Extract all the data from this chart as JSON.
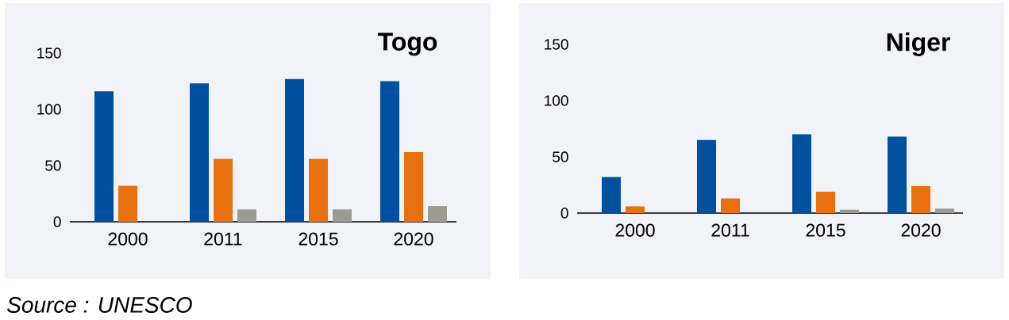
{
  "chart_data": [
    {
      "type": "bar",
      "title": "Togo",
      "categories": [
        "2000",
        "2011",
        "2015",
        "2020"
      ],
      "series": [
        {
          "color": "#0050a0",
          "values": [
            116,
            123,
            127,
            125
          ]
        },
        {
          "color": "#e8700f",
          "values": [
            32,
            56,
            56,
            62
          ]
        },
        {
          "color": "#9c9b91",
          "values": [
            null,
            11,
            11,
            14
          ]
        }
      ],
      "ylim": [
        0,
        150
      ],
      "yticks": [
        0,
        50,
        100,
        150
      ],
      "annotations": [
        "Source : UNESCO"
      ]
    },
    {
      "type": "bar",
      "title": "Niger",
      "categories": [
        "2000",
        "2011",
        "2015",
        "2020"
      ],
      "series": [
        {
          "color": "#0050a0",
          "values": [
            32,
            65,
            70,
            68
          ]
        },
        {
          "color": "#e8700f",
          "values": [
            6,
            13,
            19,
            24
          ]
        },
        {
          "color": "#9c9b91",
          "values": [
            null,
            null,
            3,
            4
          ]
        }
      ],
      "ylim": [
        0,
        150
      ],
      "yticks": [
        0,
        50,
        100,
        150
      ]
    }
  ]
}
